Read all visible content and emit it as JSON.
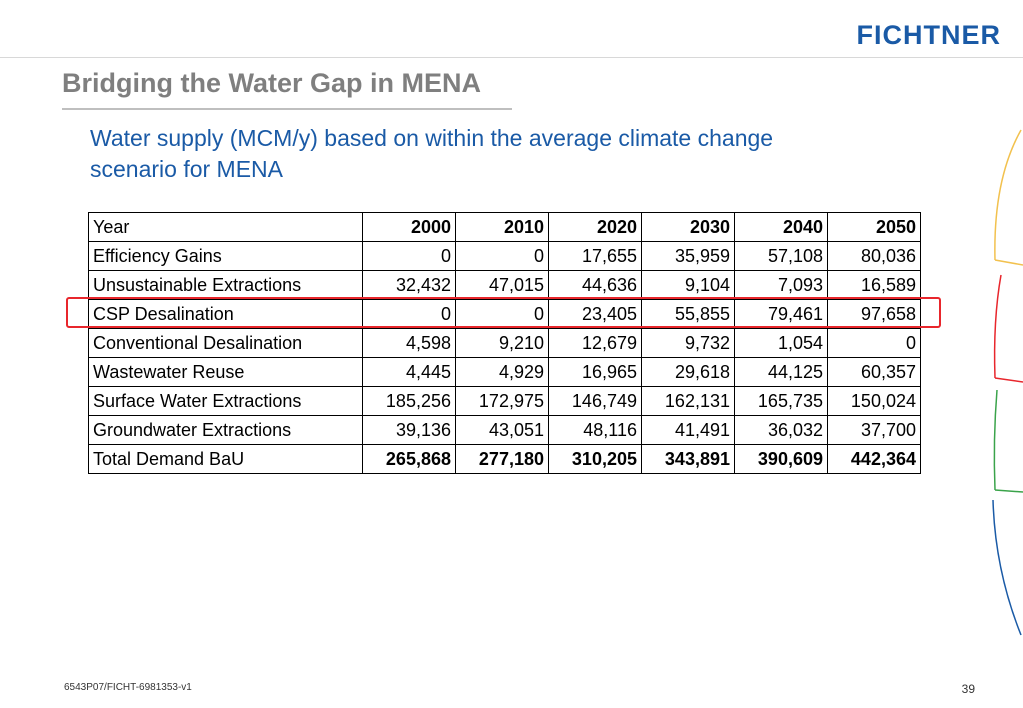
{
  "header": {
    "logo_text": "FICHTNER"
  },
  "slide": {
    "title": "Bridging the Water Gap in MENA",
    "subtitle": "Water supply (MCM/y) based on within the average climate change scenario for MENA"
  },
  "table": {
    "columns": [
      "Year",
      "2000",
      "2010",
      "2020",
      "2030",
      "2040",
      "2050"
    ],
    "rows": [
      {
        "label": "Efficiency Gains",
        "values": [
          "0",
          "0",
          "17,655",
          "35,959",
          "57,108",
          "80,036"
        ]
      },
      {
        "label": "Unsustainable Extractions",
        "values": [
          "32,432",
          "47,015",
          "44,636",
          "9,104",
          "7,093",
          "16,589"
        ]
      },
      {
        "label": "CSP Desalination",
        "values": [
          "0",
          "0",
          "23,405",
          "55,855",
          "79,461",
          "97,658"
        ]
      },
      {
        "label": "Conventional Desalination",
        "values": [
          "4,598",
          "9,210",
          "12,679",
          "9,732",
          "1,054",
          "0"
        ]
      },
      {
        "label": "Wastewater Reuse",
        "values": [
          "4,445",
          "4,929",
          "16,965",
          "29,618",
          "44,125",
          "60,357"
        ]
      },
      {
        "label": "Surface Water Extractions",
        "values": [
          "185,256",
          "172,975",
          "146,749",
          "162,131",
          "165,735",
          "150,024"
        ]
      },
      {
        "label": "Groundwater Extractions",
        "values": [
          "39,136",
          "43,051",
          "48,116",
          "41,491",
          "36,032",
          "37,700"
        ]
      },
      {
        "label": "Total Demand BaU",
        "values": [
          "265,868",
          "277,180",
          "310,205",
          "343,891",
          "390,609",
          "442,364"
        ]
      }
    ],
    "highlighted_row": "CSP Desalination"
  },
  "footer": {
    "doc_id": "6543P07/FICHT-6981353-v1",
    "page_number": "39"
  },
  "colors": {
    "brand_blue": "#1a5aa6",
    "title_gray": "#7f7f7f",
    "highlight_red": "#e8262c"
  }
}
